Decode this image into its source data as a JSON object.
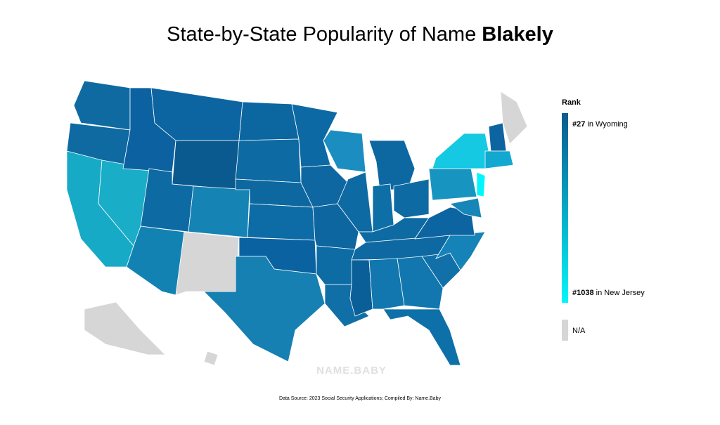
{
  "title": {
    "text": "State-by-State Popularity of Name",
    "name": "Blakely"
  },
  "legend": {
    "title": "Rank",
    "top": {
      "rank": "#27",
      "place": "in Wyoming"
    },
    "bottom": {
      "rank": "#1038",
      "place": "in New Jersey"
    },
    "na": "N/A",
    "scale_colors": [
      "#0b5a8f",
      "#00f6fa"
    ],
    "na_color": "#d6d6d6"
  },
  "map": {
    "region_colors": [
      "#0e6aa1",
      "#0e6aa1",
      "#16aac6",
      "#19adc8",
      "#0c62a1",
      "#0c64a0",
      "#0b5a8f",
      "#0d6aa2",
      "#1584b5",
      "#1282b3",
      "#d6d6d6",
      "#0c66a0",
      "#0d6aa2",
      "#0d68a0",
      "#0d6ca5",
      "#0b62a0",
      "#1680b3",
      "#0d69a3",
      "#0e67a0",
      "#0d66a0",
      "#0d6ca4",
      "#0f6fa6",
      "#1c8dc0",
      "#0d6aa2",
      "#0d68a2",
      "#0e6fa6",
      "#0e6aa2",
      "#0e6aa2",
      "#0e69a2",
      "#0b5f98",
      "#1177ae",
      "#1177ae",
      "#0e70a8",
      "#1170a8",
      "#1683b8",
      "#0c64a0",
      "#1894c0",
      "#14c9e1",
      "#00f6fa",
      "#0d64a0",
      "#d6d6d6",
      "#12a8d0",
      "#1685b8",
      "#d6d6d6",
      "#d6d6d6"
    ]
  },
  "source": "Data Source: 2023 Social Security Applications; Compiled By: Name.Baby",
  "watermark": "NAME.BABY"
}
